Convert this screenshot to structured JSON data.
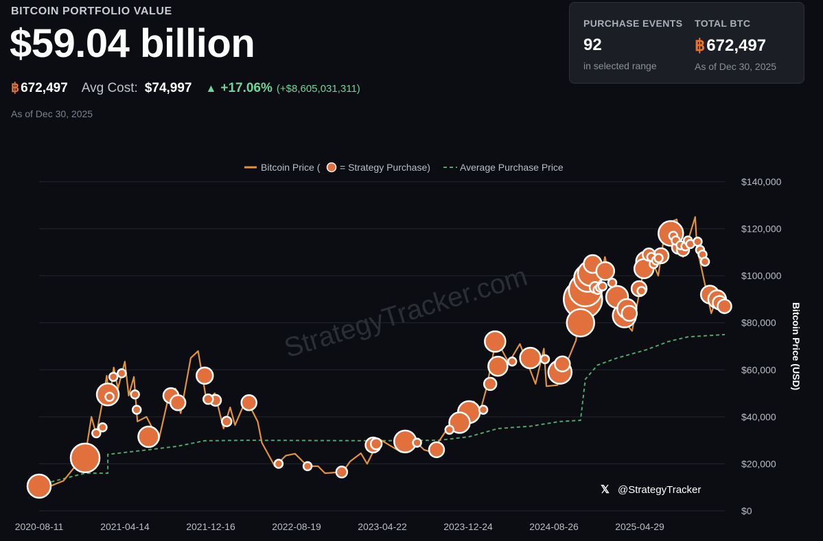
{
  "header": {
    "title": "BITCOIN PORTFOLIO VALUE",
    "value": "$59.04 billion",
    "btc_symbol": "฿",
    "btc_holdings": "672,497",
    "avg_cost_label": "Avg Cost:",
    "avg_cost_value": "$74,997",
    "change_arrow": "▲",
    "change_pct": "+17.06%",
    "change_abs": "(+$8,605,031,311)",
    "as_of": "As of Dec 30, 2025"
  },
  "stats": {
    "purchase_events_label": "PURCHASE EVENTS",
    "purchase_events_value": "92",
    "purchase_events_sub": "in selected range",
    "total_btc_label": "TOTAL BTC",
    "total_btc_symbol": "฿",
    "total_btc_value": "672,497",
    "total_btc_sub": "As of Dec 30, 2025"
  },
  "colors": {
    "price_line": "#e39339",
    "purchase": "#e2703d",
    "avg_line": "#4fa86a",
    "grid": "#23272f"
  },
  "chart_data": {
    "type": "line",
    "legend": {
      "price_a": "Bitcoin Price (",
      "price_b": "= Strategy Purchase)",
      "avg": "Average Purchase Price"
    },
    "ylabel": "Bitcoin Price (USD)",
    "ylim": [
      0,
      140000
    ],
    "y_ticks": [
      0,
      20000,
      40000,
      60000,
      80000,
      100000,
      120000,
      140000
    ],
    "y_tick_labels": [
      "$0",
      "$20,000",
      "$40,000",
      "$60,000",
      "$80,000",
      "$100,000",
      "$120,000",
      "$140,000"
    ],
    "x_tick_labels": [
      "2020-08-11",
      "2021-04-14",
      "2021-12-16",
      "2022-08-19",
      "2023-04-22",
      "2023-12-24",
      "2024-08-26",
      "2025-04-29"
    ],
    "xlim": [
      "2020-08-11",
      "2025-12-30"
    ],
    "watermark": "StrategyTracker.com",
    "social_icon": "x-logo-icon",
    "social_handle": "@StrategyTracker",
    "price_series": [
      [
        "2020-08-11",
        11500
      ],
      [
        "2020-09-15",
        10700
      ],
      [
        "2020-10-20",
        12800
      ],
      [
        "2020-11-20",
        18500
      ],
      [
        "2020-12-21",
        23000
      ],
      [
        "2021-01-08",
        40000
      ],
      [
        "2021-01-22",
        32500
      ],
      [
        "2021-02-09",
        46500
      ],
      [
        "2021-02-21",
        57500
      ],
      [
        "2021-03-01",
        47000
      ],
      [
        "2021-03-13",
        61000
      ],
      [
        "2021-03-25",
        52000
      ],
      [
        "2021-04-14",
        63500
      ],
      [
        "2021-04-25",
        49000
      ],
      [
        "2021-05-10",
        57000
      ],
      [
        "2021-05-20",
        38000
      ],
      [
        "2021-06-15",
        40000
      ],
      [
        "2021-07-20",
        30000
      ],
      [
        "2021-08-15",
        47000
      ],
      [
        "2021-09-06",
        52000
      ],
      [
        "2021-09-21",
        41500
      ],
      [
        "2021-10-20",
        65000
      ],
      [
        "2021-11-10",
        68000
      ],
      [
        "2021-12-04",
        47000
      ],
      [
        "2021-12-28",
        50000
      ],
      [
        "2022-01-22",
        35000
      ],
      [
        "2022-02-10",
        44000
      ],
      [
        "2022-02-24",
        36500
      ],
      [
        "2022-03-28",
        47500
      ],
      [
        "2022-04-30",
        38000
      ],
      [
        "2022-05-12",
        29000
      ],
      [
        "2022-06-18",
        19000
      ],
      [
        "2022-07-20",
        23500
      ],
      [
        "2022-08-15",
        24300
      ],
      [
        "2022-09-20",
        19000
      ],
      [
        "2022-10-20",
        19000
      ],
      [
        "2022-11-09",
        16000
      ],
      [
        "2022-12-30",
        16500
      ],
      [
        "2023-01-20",
        21000
      ],
      [
        "2023-02-20",
        24500
      ],
      [
        "2023-03-10",
        20000
      ],
      [
        "2023-04-14",
        30500
      ],
      [
        "2023-06-15",
        25000
      ],
      [
        "2023-07-13",
        31500
      ],
      [
        "2023-08-20",
        26000
      ],
      [
        "2023-09-11",
        25000
      ],
      [
        "2023-10-24",
        34500
      ],
      [
        "2023-11-15",
        37500
      ],
      [
        "2023-12-08",
        44000
      ],
      [
        "2024-01-10",
        46500
      ],
      [
        "2024-01-23",
        39500
      ],
      [
        "2024-02-15",
        52000
      ],
      [
        "2024-03-14",
        73000
      ],
      [
        "2024-04-19",
        63000
      ],
      [
        "2024-05-21",
        71000
      ],
      [
        "2024-07-05",
        54000
      ],
      [
        "2024-07-29",
        69000
      ],
      [
        "2024-08-05",
        53000
      ],
      [
        "2024-09-06",
        53500
      ],
      [
        "2024-10-29",
        72500
      ],
      [
        "2024-11-12",
        88000
      ],
      [
        "2024-11-22",
        99000
      ],
      [
        "2024-12-17",
        107000
      ],
      [
        "2024-12-30",
        92000
      ],
      [
        "2025-01-20",
        108000
      ],
      [
        "2025-02-26",
        84000
      ],
      [
        "2025-04-08",
        76500
      ],
      [
        "2025-05-22",
        111000
      ],
      [
        "2025-06-22",
        100000
      ],
      [
        "2025-07-14",
        122000
      ],
      [
        "2025-08-14",
        124000
      ],
      [
        "2025-09-01",
        108000
      ],
      [
        "2025-10-06",
        125000
      ],
      [
        "2025-10-11",
        112000
      ],
      [
        "2025-11-21",
        84000
      ],
      [
        "2025-12-10",
        92000
      ],
      [
        "2025-12-30",
        87000
      ]
    ],
    "avg_series": [
      [
        "2020-08-11",
        11000
      ],
      [
        "2020-12-21",
        16000
      ],
      [
        "2021-02-24",
        16000
      ],
      [
        "2021-02-24",
        24000
      ],
      [
        "2021-06-21",
        26000
      ],
      [
        "2021-09-13",
        27500
      ],
      [
        "2021-11-29",
        29800
      ],
      [
        "2022-04-05",
        30000
      ],
      [
        "2023-04-05",
        29800
      ],
      [
        "2023-10-01",
        30000
      ],
      [
        "2023-12-27",
        31500
      ],
      [
        "2024-03-19",
        35000
      ],
      [
        "2024-06-20",
        36000
      ],
      [
        "2024-09-13",
        38000
      ],
      [
        "2024-11-11",
        38500
      ],
      [
        "2024-11-25",
        56000
      ],
      [
        "2024-12-30",
        62000
      ],
      [
        "2025-02-24",
        65000
      ],
      [
        "2025-05-19",
        68500
      ],
      [
        "2025-07-21",
        72000
      ],
      [
        "2025-09-15",
        74000
      ],
      [
        "2025-12-30",
        75000
      ]
    ],
    "purchases": [
      [
        "2020-08-11",
        10500,
        17
      ],
      [
        "2020-12-21",
        22500,
        21
      ],
      [
        "2021-01-22",
        33000,
        6
      ],
      [
        "2021-02-09",
        35500,
        6
      ],
      [
        "2021-02-24",
        49500,
        16
      ],
      [
        "2021-03-01",
        48500,
        6
      ],
      [
        "2021-03-12",
        57000,
        6
      ],
      [
        "2021-04-05",
        58500,
        6
      ],
      [
        "2021-05-13",
        49500,
        6
      ],
      [
        "2021-05-18",
        43000,
        6
      ],
      [
        "2021-06-21",
        31500,
        15
      ],
      [
        "2021-08-24",
        49000,
        11
      ],
      [
        "2021-09-13",
        46000,
        11
      ],
      [
        "2021-11-29",
        57500,
        12
      ],
      [
        "2021-12-09",
        47500,
        7
      ],
      [
        "2021-12-30",
        47000,
        8
      ],
      [
        "2022-01-31",
        38000,
        7
      ],
      [
        "2022-04-05",
        46000,
        11
      ],
      [
        "2022-06-29",
        20000,
        6
      ],
      [
        "2022-09-20",
        19000,
        6
      ],
      [
        "2022-12-27",
        16500,
        8
      ],
      [
        "2023-03-27",
        28000,
        11
      ],
      [
        "2023-04-05",
        28500,
        8
      ],
      [
        "2023-06-27",
        29500,
        16
      ],
      [
        "2023-07-31",
        29000,
        6
      ],
      [
        "2023-09-25",
        26000,
        11
      ],
      [
        "2023-11-01",
        34500,
        6
      ],
      [
        "2023-11-30",
        37500,
        15
      ],
      [
        "2023-12-27",
        42000,
        16
      ],
      [
        "2024-02-06",
        43000,
        6
      ],
      [
        "2024-02-26",
        54000,
        9
      ],
      [
        "2024-03-11",
        72000,
        15
      ],
      [
        "2024-03-19",
        61500,
        14
      ],
      [
        "2024-04-29",
        63500,
        6
      ],
      [
        "2024-06-20",
        65000,
        15
      ],
      [
        "2024-08-01",
        64500,
        6
      ],
      [
        "2024-09-13",
        59000,
        17
      ],
      [
        "2024-09-20",
        62500,
        11
      ],
      [
        "2024-11-11",
        80000,
        20
      ],
      [
        "2024-11-18",
        90000,
        28
      ],
      [
        "2024-11-25",
        94000,
        24
      ],
      [
        "2024-12-02",
        99000,
        20
      ],
      [
        "2024-12-09",
        101000,
        18
      ],
      [
        "2024-12-16",
        105000,
        13
      ],
      [
        "2024-12-23",
        95000,
        8
      ],
      [
        "2024-12-30",
        94000,
        6
      ],
      [
        "2025-01-06",
        95000,
        6
      ],
      [
        "2025-01-13",
        95500,
        6
      ],
      [
        "2025-01-21",
        102000,
        13
      ],
      [
        "2025-02-10",
        97000,
        6
      ],
      [
        "2025-02-24",
        91000,
        16
      ],
      [
        "2025-03-17",
        83000,
        17
      ],
      [
        "2025-03-24",
        86000,
        14
      ],
      [
        "2025-03-31",
        84000,
        11
      ],
      [
        "2025-04-28",
        94500,
        11
      ],
      [
        "2025-05-05",
        93500,
        6
      ],
      [
        "2025-05-12",
        103000,
        14
      ],
      [
        "2025-05-19",
        106000,
        15
      ],
      [
        "2025-05-26",
        109000,
        9
      ],
      [
        "2025-06-02",
        108000,
        6
      ],
      [
        "2025-06-09",
        105000,
        6
      ],
      [
        "2025-06-16",
        106500,
        6
      ],
      [
        "2025-06-23",
        107500,
        6
      ],
      [
        "2025-06-30",
        108500,
        11
      ],
      [
        "2025-07-28",
        118000,
        18
      ],
      [
        "2025-08-04",
        117000,
        6
      ],
      [
        "2025-08-11",
        115000,
        6
      ],
      [
        "2025-08-18",
        112000,
        9
      ],
      [
        "2025-08-25",
        113000,
        6
      ],
      [
        "2025-09-01",
        111000,
        9
      ],
      [
        "2025-09-08",
        112500,
        6
      ],
      [
        "2025-09-15",
        115000,
        6
      ],
      [
        "2025-09-22",
        113500,
        6
      ],
      [
        "2025-10-13",
        114500,
        6
      ],
      [
        "2025-10-20",
        111000,
        6
      ],
      [
        "2025-10-27",
        109000,
        6
      ],
      [
        "2025-11-03",
        106000,
        6
      ],
      [
        "2025-11-17",
        92000,
        13
      ],
      [
        "2025-12-08",
        90000,
        13
      ],
      [
        "2025-12-15",
        88500,
        10
      ],
      [
        "2025-12-29",
        87000,
        10
      ]
    ]
  }
}
